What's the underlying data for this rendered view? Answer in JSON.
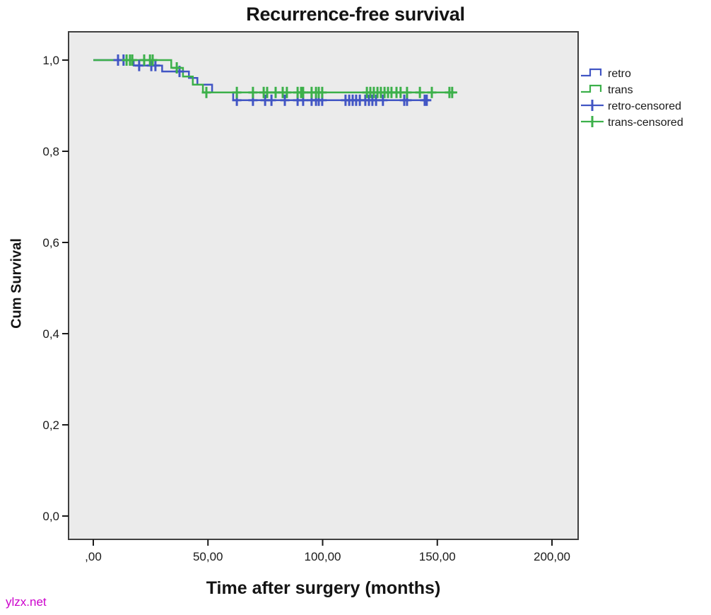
{
  "watermark": {
    "text": "ylzx.net",
    "color": "#cc00cc"
  },
  "chart_data": {
    "type": "line",
    "subtype": "kaplan-meier-step-survival",
    "title": "Recurrence-free survival",
    "xlabel": "Time after surgery (months)",
    "ylabel": "Cum Survival",
    "xlim": [
      0,
      211
    ],
    "ylim": [
      0,
      1.06
    ],
    "grid": false,
    "legend_position": "right",
    "plot_bg": "#ebebeb",
    "plot_border_color": "#3f3f3f",
    "x_ticks": [
      {
        "label": ",00",
        "value": 0
      },
      {
        "label": "50,00",
        "value": 50
      },
      {
        "label": "100,00",
        "value": 100
      },
      {
        "label": "150,00",
        "value": 150
      },
      {
        "label": "200,00",
        "value": 200
      }
    ],
    "y_ticks": [
      {
        "label": "0,0",
        "value": 0.0
      },
      {
        "label": "0,2",
        "value": 0.2
      },
      {
        "label": "0,4",
        "value": 0.4
      },
      {
        "label": "0,6",
        "value": 0.6
      },
      {
        "label": "0,8",
        "value": 0.8
      },
      {
        "label": "1,0",
        "value": 1.0
      }
    ],
    "series": [
      {
        "name": "retro",
        "color": "#4155c4",
        "start": [
          0,
          1.0
        ],
        "steps": [
          [
            17.6,
            0.988
          ],
          [
            30.0,
            0.975
          ],
          [
            41.7,
            0.961
          ],
          [
            45.4,
            0.946
          ],
          [
            51.8,
            0.929
          ],
          [
            61.0,
            0.912
          ]
        ],
        "end_time": 147.0,
        "censored": [
          10.8,
          13.2,
          20.0,
          25.3,
          27.1,
          37.6,
          62.6,
          69.6,
          74.9,
          77.7,
          83.5,
          89.1,
          91.5,
          95.2,
          97.1,
          98.3,
          99.8,
          110.0,
          111.6,
          113.1,
          114.6,
          116.2,
          118.6,
          120.2,
          121.7,
          123.3,
          126.3,
          135.6,
          136.8,
          144.5,
          145.4
        ]
      },
      {
        "name": "trans",
        "color": "#3cb04a",
        "start": [
          0,
          1.0
        ],
        "steps": [
          [
            34.0,
            0.983
          ],
          [
            39.1,
            0.964
          ],
          [
            43.4,
            0.946
          ],
          [
            47.8,
            0.929
          ]
        ],
        "end_time": 158.7,
        "censored": [
          14.5,
          16.0,
          17.0,
          22.2,
          24.7,
          25.9,
          36.4,
          49.3,
          62.6,
          69.6,
          74.3,
          75.8,
          79.5,
          82.6,
          84.4,
          89.1,
          90.6,
          91.5,
          95.2,
          97.1,
          98.3,
          99.8,
          119.3,
          120.8,
          122.3,
          123.9,
          125.4,
          127.0,
          128.5,
          130.0,
          132.2,
          134.0,
          136.8,
          142.4,
          147.6,
          155.3,
          156.5
        ]
      }
    ],
    "legend": [
      {
        "label": "retro",
        "type": "line",
        "series": "retro"
      },
      {
        "label": "trans",
        "type": "line",
        "series": "trans"
      },
      {
        "label": "retro-censored",
        "type": "censored",
        "series": "retro"
      },
      {
        "label": "trans-censored",
        "type": "censored",
        "series": "trans"
      }
    ]
  }
}
